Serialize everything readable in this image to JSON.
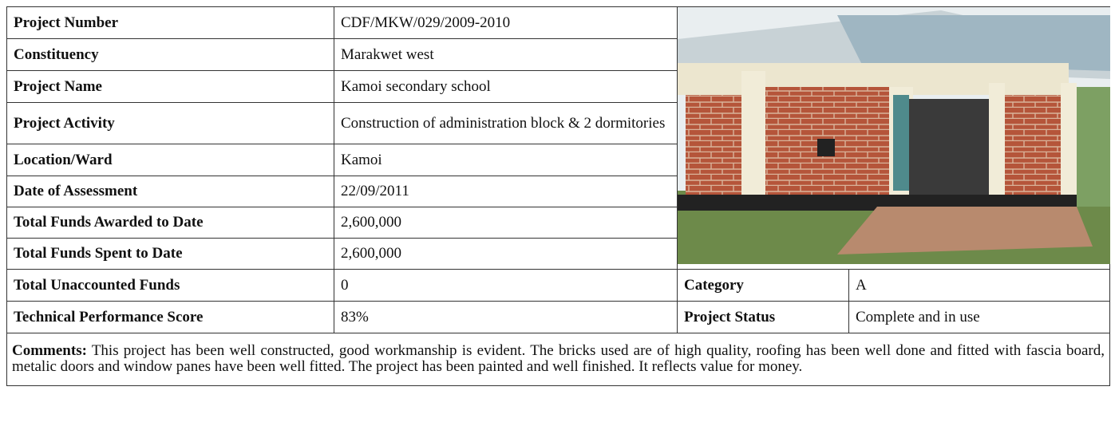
{
  "table": {
    "rows": [
      [
        "Project Number",
        "CDF/MKW/029/2009-2010"
      ],
      [
        "Constituency",
        "Marakwet west"
      ],
      [
        "Project Name",
        "Kamoi secondary school"
      ],
      [
        "Project Activity",
        "Construction of administration block & 2 dormitories"
      ],
      [
        "Location/Ward",
        "Kamoi"
      ],
      [
        "Date of Assessment",
        "22/09/2011"
      ],
      [
        "Total Funds Awarded to Date",
        "2,600,000"
      ],
      [
        "Total Funds Spent to Date",
        "2,600,000"
      ],
      [
        "Total Unaccounted Funds",
        "0",
        "Category",
        "A"
      ],
      [
        "Technical Performance Score",
        "83%",
        "Project Status",
        "Complete and in use"
      ]
    ]
  },
  "comments": {
    "label": "Comments:",
    "text": " This project has been well constructed, good workmanship is evident. The bricks used are of high quality, roofing has been well done and fitted with fascia board, metalic doors and window panes have been well fitted. The project has been painted and well finished.  It reflects value for money."
  }
}
